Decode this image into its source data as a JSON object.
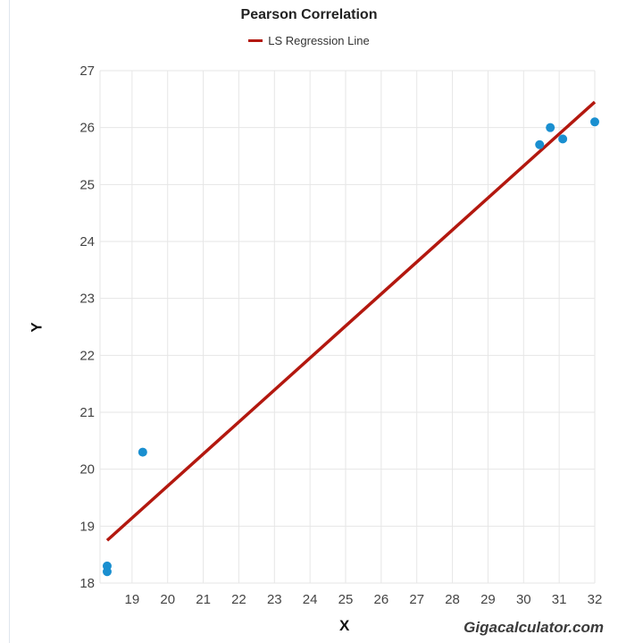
{
  "chart_data": {
    "type": "scatter",
    "title": "Pearson Correlation",
    "xlabel": "X",
    "ylabel": "Y",
    "xlim": [
      18.1,
      32
    ],
    "ylim": [
      18,
      27
    ],
    "x_ticks": [
      19,
      20,
      21,
      22,
      23,
      24,
      25,
      26,
      27,
      28,
      29,
      30,
      31,
      32
    ],
    "y_ticks": [
      18,
      19,
      20,
      21,
      22,
      23,
      24,
      25,
      26,
      27
    ],
    "grid": true,
    "legend_position": "top-center",
    "points": [
      {
        "x": 18.3,
        "y": 18.3
      },
      {
        "x": 18.3,
        "y": 18.2
      },
      {
        "x": 19.3,
        "y": 20.3
      },
      {
        "x": 30.45,
        "y": 25.7
      },
      {
        "x": 30.75,
        "y": 26.0
      },
      {
        "x": 31.1,
        "y": 25.8
      },
      {
        "x": 32.0,
        "y": 26.1
      }
    ],
    "regression": {
      "name": "LS Regression Line",
      "x": [
        18.3,
        32.0
      ],
      "y": [
        18.75,
        26.45
      ]
    },
    "colors": {
      "points": "#1a8fd0",
      "line": "#b3180f",
      "grid": "#e6e6e6"
    }
  },
  "watermark": "Gigacalculator.com"
}
